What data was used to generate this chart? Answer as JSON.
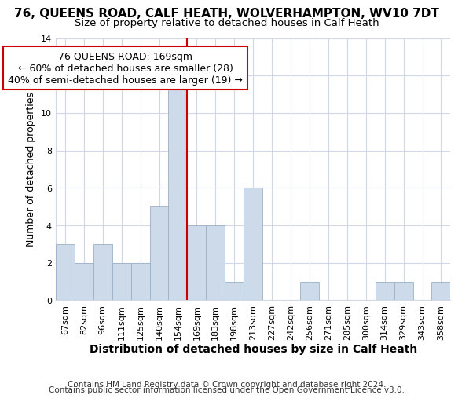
{
  "title": "76, QUEENS ROAD, CALF HEATH, WOLVERHAMPTON, WV10 7DT",
  "subtitle": "Size of property relative to detached houses in Calf Heath",
  "xlabel": "Distribution of detached houses by size in Calf Heath",
  "ylabel": "Number of detached properties",
  "bin_labels": [
    "67sqm",
    "82sqm",
    "96sqm",
    "111sqm",
    "125sqm",
    "140sqm",
    "154sqm",
    "169sqm",
    "183sqm",
    "198sqm",
    "213sqm",
    "227sqm",
    "242sqm",
    "256sqm",
    "271sqm",
    "285sqm",
    "300sqm",
    "314sqm",
    "329sqm",
    "343sqm",
    "358sqm"
  ],
  "bar_heights": [
    3,
    2,
    3,
    2,
    2,
    5,
    12,
    4,
    4,
    1,
    6,
    0,
    0,
    1,
    0,
    0,
    0,
    1,
    1,
    0,
    1
  ],
  "bar_color": "#cddaea",
  "bar_edgecolor": "#9ab0c8",
  "vline_x": 6.5,
  "vline_color": "#cc0000",
  "ylim": [
    0,
    14
  ],
  "yticks": [
    0,
    2,
    4,
    6,
    8,
    10,
    12,
    14
  ],
  "annotation_title": "76 QUEENS ROAD: 169sqm",
  "annotation_line1": "← 60% of detached houses are smaller (28)",
  "annotation_line2": "40% of semi-detached houses are larger (19) →",
  "annotation_box_edgecolor": "#cc0000",
  "footer1": "Contains HM Land Registry data © Crown copyright and database right 2024.",
  "footer2": "Contains public sector information licensed under the Open Government Licence v3.0.",
  "background_color": "#ffffff",
  "grid_color": "#d0d8e8",
  "title_fontsize": 11,
  "subtitle_fontsize": 9.5,
  "xlabel_fontsize": 10,
  "ylabel_fontsize": 9,
  "tick_fontsize": 8,
  "annotation_fontsize": 9,
  "footer_fontsize": 7.5
}
